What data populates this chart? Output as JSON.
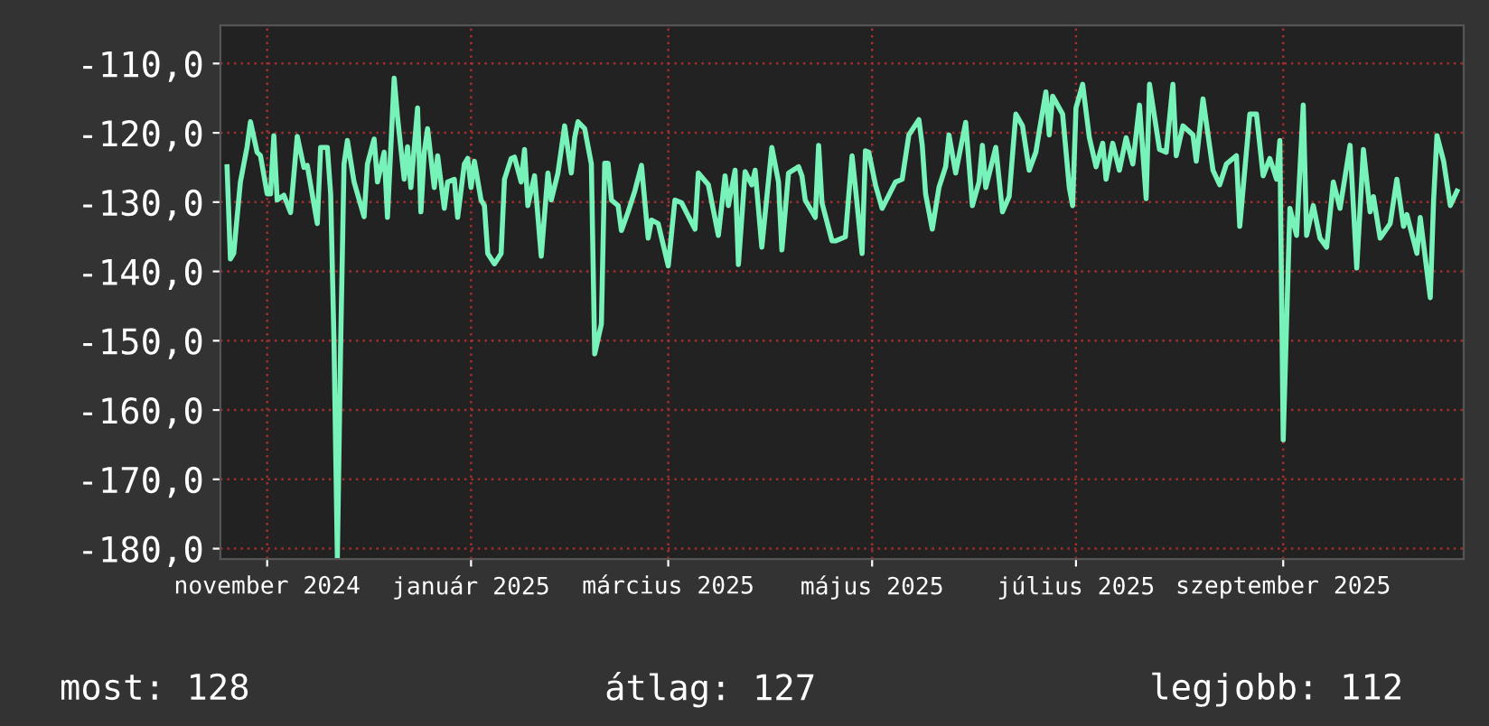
{
  "chart_data": {
    "type": "line",
    "x": [
      "2024-10-20",
      "2024-10-21",
      "2024-10-22",
      "2024-10-23",
      "2024-10-24",
      "2024-10-26",
      "2024-10-27",
      "2024-10-29",
      "2024-10-30",
      "2024-11-01",
      "2024-11-02",
      "2024-11-03",
      "2024-11-04",
      "2024-11-06",
      "2024-11-08",
      "2024-11-10",
      "2024-11-12",
      "2024-11-13",
      "2024-11-16",
      "2024-11-17",
      "2024-11-19",
      "2024-11-20",
      "2024-11-21",
      "2024-11-22",
      "2024-11-23",
      "2024-11-24",
      "2024-11-25",
      "2024-11-27",
      "2024-11-30",
      "2024-12-01",
      "2024-12-03",
      "2024-12-04",
      "2024-12-06",
      "2024-12-07",
      "2024-12-09",
      "2024-12-10",
      "2024-12-12",
      "2024-12-13",
      "2024-12-14",
      "2024-12-16",
      "2024-12-17",
      "2024-12-18",
      "2024-12-19",
      "2024-12-21",
      "2024-12-22",
      "2024-12-24",
      "2024-12-25",
      "2024-12-27",
      "2024-12-28",
      "2024-12-30",
      "2024-12-31",
      "2025-01-01",
      "2025-01-02",
      "2025-01-04",
      "2025-01-05",
      "2025-01-06",
      "2025-01-08",
      "2025-01-10",
      "2025-01-11",
      "2025-01-13",
      "2025-01-14",
      "2025-01-16",
      "2025-01-17",
      "2025-01-18",
      "2025-01-20",
      "2025-01-22",
      "2025-01-24",
      "2025-01-25",
      "2025-01-27",
      "2025-01-29",
      "2025-01-31",
      "2025-02-01",
      "2025-02-02",
      "2025-02-04",
      "2025-02-06",
      "2025-02-07",
      "2025-02-09",
      "2025-02-10",
      "2025-02-11",
      "2025-02-12",
      "2025-02-14",
      "2025-02-15",
      "2025-02-17",
      "2025-02-19",
      "2025-02-21",
      "2025-02-23",
      "2025-02-24",
      "2025-02-26",
      "2025-03-01",
      "2025-03-03",
      "2025-03-05",
      "2025-03-09",
      "2025-03-10",
      "2025-03-13",
      "2025-03-16",
      "2025-03-18",
      "2025-03-19",
      "2025-03-21",
      "2025-03-22",
      "2025-03-24",
      "2025-03-26",
      "2025-03-27",
      "2025-03-29",
      "2025-04-01",
      "2025-04-03",
      "2025-04-04",
      "2025-04-06",
      "2025-04-09",
      "2025-04-10",
      "2025-04-11",
      "2025-04-14",
      "2025-04-15",
      "2025-04-16",
      "2025-04-19",
      "2025-04-20",
      "2025-04-23",
      "2025-04-25",
      "2025-04-26",
      "2025-04-28",
      "2025-04-29",
      "2025-04-30",
      "2025-05-02",
      "2025-05-04",
      "2025-05-06",
      "2025-05-08",
      "2025-05-10",
      "2025-05-12",
      "2025-05-15",
      "2025-05-16",
      "2025-05-17",
      "2025-05-19",
      "2025-05-21",
      "2025-05-23",
      "2025-05-24",
      "2025-05-26",
      "2025-05-29",
      "2025-05-31",
      "2025-06-02",
      "2025-06-03",
      "2025-06-04",
      "2025-06-07",
      "2025-06-09",
      "2025-06-11",
      "2025-06-13",
      "2025-06-15",
      "2025-06-17",
      "2025-06-19",
      "2025-06-20",
      "2025-06-22",
      "2025-06-23",
      "2025-06-24",
      "2025-06-27",
      "2025-06-29",
      "2025-06-30",
      "2025-07-01",
      "2025-07-03",
      "2025-07-05",
      "2025-07-07",
      "2025-07-09",
      "2025-07-10",
      "2025-07-12",
      "2025-07-14",
      "2025-07-16",
      "2025-07-18",
      "2025-07-20",
      "2025-07-22",
      "2025-07-23",
      "2025-07-26",
      "2025-07-28",
      "2025-07-30",
      "2025-07-31",
      "2025-08-02",
      "2025-08-05",
      "2025-08-06",
      "2025-08-08",
      "2025-08-11",
      "2025-08-13",
      "2025-08-15",
      "2025-08-18",
      "2025-08-19",
      "2025-08-22",
      "2025-08-24",
      "2025-08-26",
      "2025-08-28",
      "2025-08-30",
      "2025-08-31",
      "2025-09-01",
      "2025-09-03",
      "2025-09-05",
      "2025-09-07",
      "2025-09-08",
      "2025-09-10",
      "2025-09-12",
      "2025-09-14",
      "2025-09-16",
      "2025-09-18",
      "2025-09-21",
      "2025-09-23",
      "2025-09-25",
      "2025-09-27",
      "2025-09-28",
      "2025-09-30",
      "2025-10-03",
      "2025-10-05",
      "2025-10-07",
      "2025-10-08",
      "2025-10-11",
      "2025-10-12",
      "2025-10-15",
      "2025-10-16",
      "2025-10-17",
      "2025-10-19",
      "2025-10-21",
      "2025-10-23"
    ],
    "series": [
      {
        "color": "#77f2b9",
        "values": [
          -124.9,
          -138.2,
          -137.4,
          -132.2,
          -127.1,
          -122.0,
          -118.4,
          -122.8,
          -123.3,
          -128.8,
          -128.8,
          -120.4,
          -129.7,
          -129.0,
          -131.5,
          -120.5,
          -125.0,
          -124.7,
          -133.1,
          -122.1,
          -122.1,
          -128.8,
          -150.2,
          -181.4,
          -150.2,
          -124.5,
          -121.1,
          -127.1,
          -132.1,
          -124.5,
          -120.9,
          -127.1,
          -122.8,
          -132.2,
          -112.1,
          -117.7,
          -126.7,
          -122.0,
          -127.9,
          -116.4,
          -131.4,
          -122.8,
          -119.4,
          -127.9,
          -123.3,
          -130.9,
          -127.1,
          -126.7,
          -132.2,
          -124.5,
          -123.7,
          -127.9,
          -124.1,
          -129.7,
          -130.5,
          -137.4,
          -138.9,
          -137.4,
          -126.7,
          -123.7,
          -123.5,
          -127.1,
          -122.4,
          -130.5,
          -126.2,
          -137.8,
          -125.8,
          -129.7,
          -125.8,
          -119.0,
          -125.8,
          -120.7,
          -118.4,
          -119.4,
          -124.5,
          -151.9,
          -147.6,
          -124.4,
          -124.4,
          -129.7,
          -130.5,
          -134.1,
          -131.4,
          -128.4,
          -124.7,
          -135.2,
          -132.6,
          -133.1,
          -139.2,
          -129.7,
          -130.1,
          -133.9,
          -125.8,
          -127.5,
          -134.8,
          -126.2,
          -130.5,
          -125.4,
          -139.0,
          -125.6,
          -127.5,
          -125.4,
          -136.5,
          -122.1,
          -127.1,
          -136.9,
          -125.8,
          -124.9,
          -126.2,
          -129.7,
          -132.2,
          -121.8,
          -130.1,
          -135.6,
          -135.6,
          -135.0,
          -123.3,
          -127.9,
          -137.4,
          -122.6,
          -122.8,
          -127.5,
          -130.9,
          -129.0,
          -127.1,
          -126.7,
          -120.3,
          -118.1,
          -121.8,
          -128.8,
          -133.9,
          -127.9,
          -124.9,
          -120.3,
          -125.8,
          -118.5,
          -130.5,
          -127.1,
          -121.8,
          -127.9,
          -122.1,
          -131.4,
          -129.2,
          -117.3,
          -119.0,
          -125.4,
          -122.8,
          -119.8,
          -114.1,
          -120.3,
          -114.7,
          -117.3,
          -127.9,
          -130.5,
          -116.4,
          -113.0,
          -120.7,
          -124.9,
          -121.5,
          -126.7,
          -121.5,
          -125.4,
          -120.7,
          -124.5,
          -116.0,
          -129.5,
          -113.0,
          -122.4,
          -122.8,
          -113.0,
          -123.3,
          -119.0,
          -120.3,
          -124.1,
          -115.1,
          -125.4,
          -127.5,
          -124.5,
          -123.3,
          -133.5,
          -117.3,
          -117.3,
          -126.2,
          -123.7,
          -126.7,
          -121.1,
          -164.3,
          -130.9,
          -134.8,
          -116.0,
          -134.8,
          -130.5,
          -135.2,
          -136.5,
          -127.1,
          -130.9,
          -121.8,
          -139.5,
          -122.4,
          -131.4,
          -129.2,
          -135.2,
          -133.1,
          -126.7,
          -133.5,
          -131.8,
          -137.4,
          -132.2,
          -143.8,
          -129.7,
          -120.4,
          -124.1,
          -130.5,
          -128.4
        ]
      }
    ],
    "xlim": [
      "2024-10-18",
      "2025-10-25"
    ],
    "xticks": [
      {
        "value": "2024-11-01",
        "label": "november 2024"
      },
      {
        "value": "2025-01-01",
        "label": "január 2025"
      },
      {
        "value": "2025-03-01",
        "label": "március 2025"
      },
      {
        "value": "2025-05-01",
        "label": "május 2025"
      },
      {
        "value": "2025-07-01",
        "label": "július 2025"
      },
      {
        "value": "2025-09-01",
        "label": "szeptember 2025"
      }
    ],
    "ylim": [
      -181.5,
      -104.5
    ],
    "yticks": [
      {
        "value": -110,
        "label": "-110,0"
      },
      {
        "value": -120,
        "label": "-120,0"
      },
      {
        "value": -130,
        "label": "-130,0"
      },
      {
        "value": -140,
        "label": "-140,0"
      },
      {
        "value": -150,
        "label": "-150,0"
      },
      {
        "value": -160,
        "label": "-160,0"
      },
      {
        "value": -170,
        "label": "-170,0"
      },
      {
        "value": -180,
        "label": "-180,0"
      }
    ],
    "grid": true,
    "annotations": [
      "most: 128",
      "átlag: 127",
      "legjobb: 112"
    ]
  }
}
